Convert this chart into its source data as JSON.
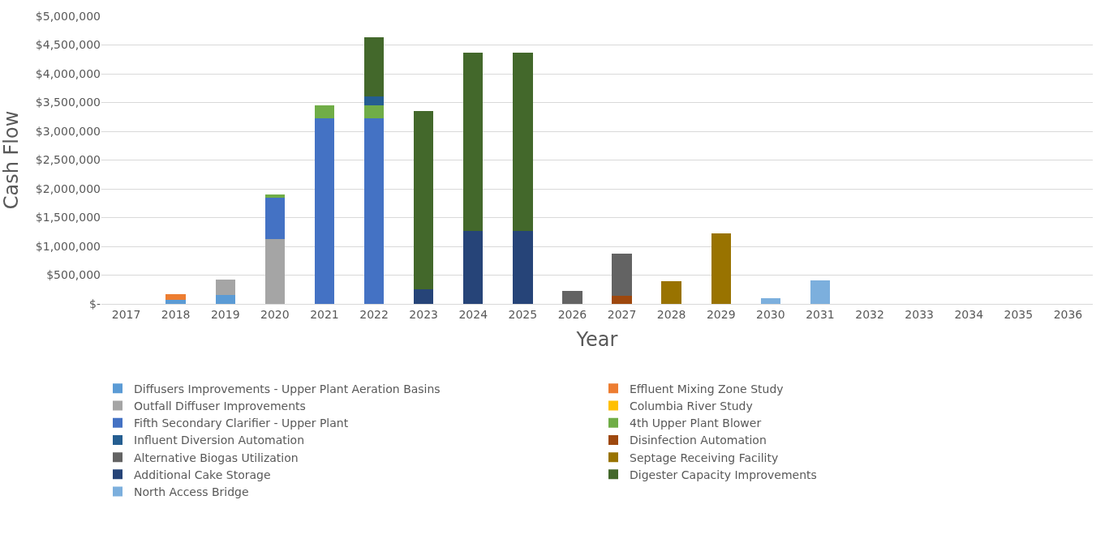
{
  "chart_data": {
    "type": "bar",
    "stacked": true,
    "xlabel": "Year",
    "ylabel": "Cash Flow",
    "categories": [
      "2017",
      "2018",
      "2019",
      "2020",
      "2021",
      "2022",
      "2023",
      "2024",
      "2025",
      "2026",
      "2027",
      "2028",
      "2029",
      "2030",
      "2031",
      "2032",
      "2033",
      "2034",
      "2035",
      "2036"
    ],
    "series": [
      {
        "name": "Diffusers Improvements - Upper Plant Aeration Basins",
        "color": "#5b9bd5",
        "values": [
          null,
          70000,
          150000,
          null,
          null,
          null,
          null,
          null,
          null,
          null,
          null,
          null,
          null,
          null,
          null,
          null,
          null,
          null,
          null,
          null
        ]
      },
      {
        "name": "Effluent Mixing Zone Study",
        "color": "#ed7d31",
        "values": [
          null,
          100000,
          null,
          null,
          null,
          null,
          null,
          null,
          null,
          null,
          null,
          null,
          null,
          null,
          null,
          null,
          null,
          null,
          null,
          null
        ]
      },
      {
        "name": "Outfall Diffuser Improvements",
        "color": "#a5a5a5",
        "values": [
          null,
          null,
          270000,
          1120000,
          null,
          null,
          null,
          null,
          null,
          null,
          null,
          null,
          null,
          null,
          null,
          null,
          null,
          null,
          null,
          null
        ]
      },
      {
        "name": "Columbia River Study",
        "color": "#ffc000",
        "values": [
          null,
          null,
          null,
          null,
          null,
          null,
          null,
          null,
          null,
          null,
          null,
          null,
          null,
          null,
          null,
          null,
          null,
          null,
          null,
          null
        ]
      },
      {
        "name": "Fifth Secondary Clarifier - Upper Plant",
        "color": "#4472c4",
        "values": [
          null,
          null,
          null,
          720000,
          3220000,
          3220000,
          null,
          null,
          null,
          null,
          null,
          null,
          null,
          null,
          null,
          null,
          null,
          null,
          null,
          null
        ]
      },
      {
        "name": "4th Upper Plant Blower",
        "color": "#70ad47",
        "values": [
          null,
          null,
          null,
          60000,
          230000,
          230000,
          null,
          null,
          null,
          null,
          null,
          null,
          null,
          null,
          null,
          null,
          null,
          null,
          null,
          null
        ]
      },
      {
        "name": "Influent Diversion Automation",
        "color": "#255e91",
        "values": [
          null,
          null,
          null,
          null,
          null,
          160000,
          null,
          null,
          null,
          null,
          null,
          null,
          null,
          null,
          null,
          null,
          null,
          null,
          null,
          null
        ]
      },
      {
        "name": "Disinfection Automation",
        "color": "#9e480e",
        "values": [
          null,
          null,
          null,
          null,
          null,
          null,
          null,
          null,
          null,
          null,
          140000,
          null,
          null,
          null,
          null,
          null,
          null,
          null,
          null,
          null
        ]
      },
      {
        "name": "Alternative Biogas Utilization",
        "color": "#636363",
        "values": [
          null,
          null,
          null,
          null,
          null,
          null,
          null,
          null,
          null,
          230000,
          730000,
          null,
          null,
          null,
          null,
          null,
          null,
          null,
          null,
          null
        ]
      },
      {
        "name": "Septage Receiving Facility",
        "color": "#997300",
        "values": [
          null,
          null,
          null,
          null,
          null,
          null,
          null,
          null,
          null,
          null,
          null,
          390000,
          1220000,
          null,
          null,
          null,
          null,
          null,
          null,
          null
        ]
      },
      {
        "name": "Additional Cake Storage",
        "color": "#264478",
        "values": [
          null,
          null,
          null,
          null,
          null,
          null,
          260000,
          1270000,
          1270000,
          null,
          null,
          null,
          null,
          null,
          null,
          null,
          null,
          null,
          null,
          null
        ]
      },
      {
        "name": "Digester Capacity Improvements",
        "color": "#43682b",
        "values": [
          null,
          null,
          null,
          null,
          null,
          1030000,
          3090000,
          3090000,
          3090000,
          null,
          null,
          null,
          null,
          null,
          null,
          null,
          null,
          null,
          null,
          null
        ]
      },
      {
        "name": "North Access Bridge",
        "color": "#7cafdd",
        "values": [
          null,
          null,
          null,
          null,
          null,
          null,
          null,
          null,
          null,
          null,
          null,
          null,
          null,
          100000,
          410000,
          null,
          null,
          null,
          null,
          null
        ]
      }
    ],
    "ylim": [
      0,
      5000000
    ],
    "yticks": [
      {
        "value": 0,
        "label": "$-"
      },
      {
        "value": 500000,
        "label": "$500,000"
      },
      {
        "value": 1000000,
        "label": "$1,000,000"
      },
      {
        "value": 1500000,
        "label": "$1,500,000"
      },
      {
        "value": 2000000,
        "label": "$2,000,000"
      },
      {
        "value": 2500000,
        "label": "$2,500,000"
      },
      {
        "value": 3000000,
        "label": "$3,000,000"
      },
      {
        "value": 3500000,
        "label": "$3,500,000"
      },
      {
        "value": 4000000,
        "label": "$4,000,000"
      },
      {
        "value": 4500000,
        "label": "$4,500,000"
      },
      {
        "value": 5000000,
        "label": "$5,000,000"
      }
    ],
    "grid": "y",
    "legend": "bottom"
  }
}
